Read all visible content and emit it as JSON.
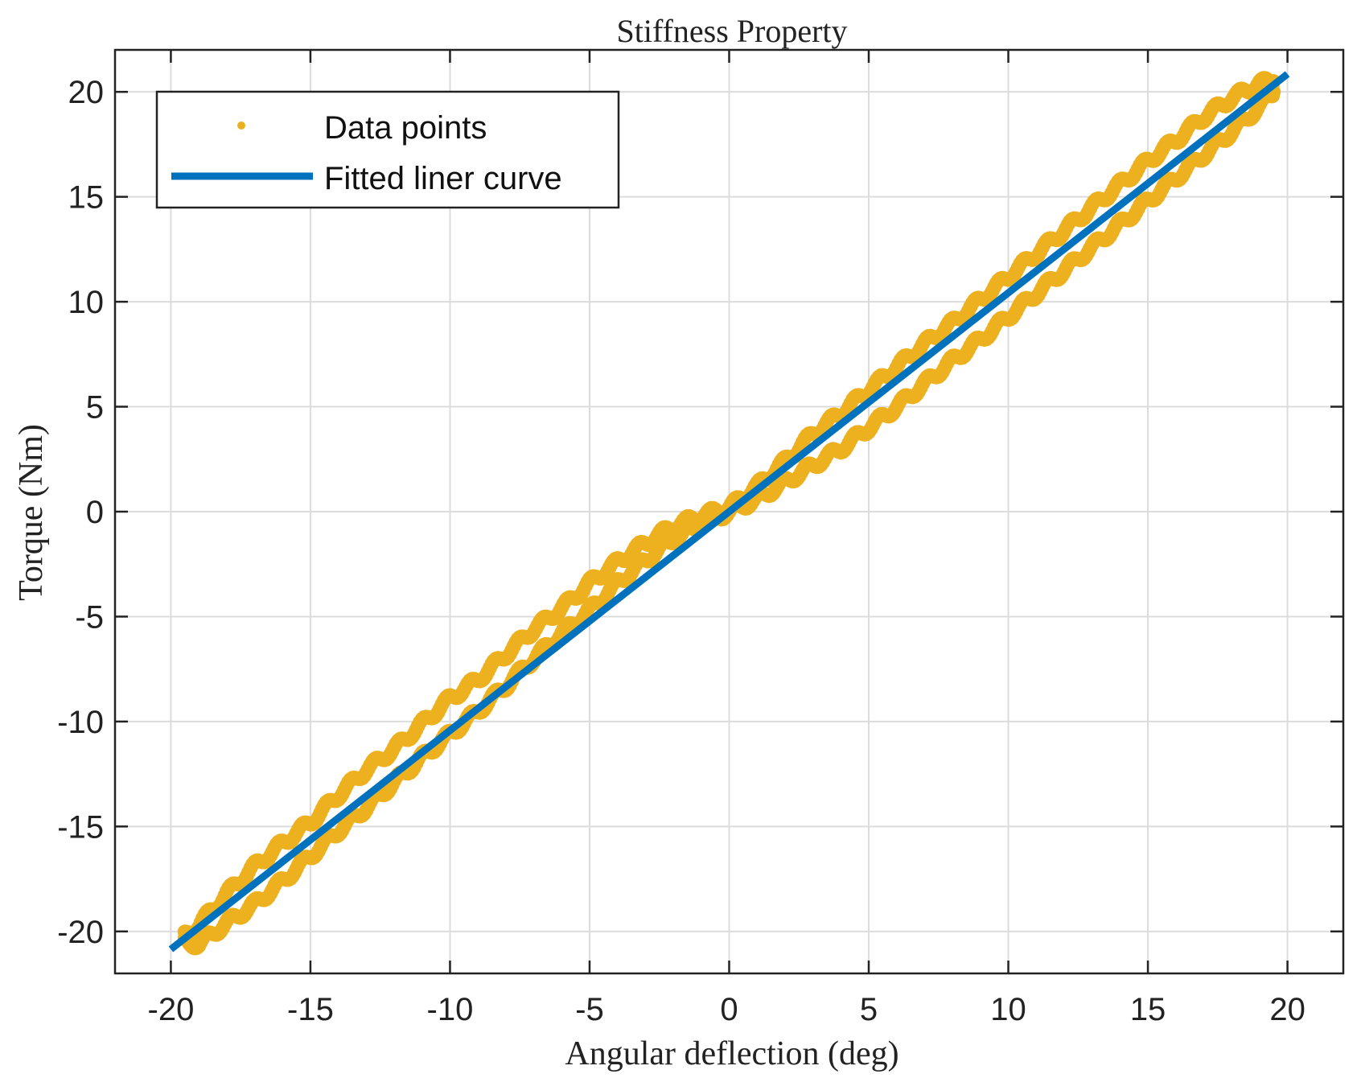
{
  "chart_data": {
    "type": "scatter",
    "title": "Stiffness Property",
    "xlabel": "Angular deflection (deg)",
    "ylabel": "Torque (Nm)",
    "xlim": [
      -22,
      22
    ],
    "ylim": [
      -22,
      22
    ],
    "xticks": [
      -20,
      -15,
      -10,
      -5,
      0,
      5,
      10,
      15,
      20
    ],
    "yticks": [
      -20,
      -15,
      -10,
      -5,
      0,
      5,
      10,
      15,
      20
    ],
    "xtick_labels": [
      "-20",
      "-15",
      "-10",
      "-5",
      "0",
      "5",
      "10",
      "15",
      "20"
    ],
    "ytick_labels": [
      "-20",
      "-15",
      "-10",
      "-5",
      "0",
      "5",
      "10",
      "15",
      "20"
    ],
    "grid": true,
    "legend_position": "top-left",
    "series": [
      {
        "name": "Data points",
        "kind": "scatter",
        "color": "#EDB120",
        "branches": [
          {
            "x": [
              -19.5,
              -19,
              -18,
              -17,
              -16,
              -15,
              -14,
              -13,
              -12,
              -11,
              -10,
              -9,
              -8,
              -7,
              -6,
              -5,
              -4,
              -3,
              -2,
              -1,
              0,
              1,
              2,
              3,
              4,
              5,
              6,
              7,
              8,
              9,
              10,
              11,
              12,
              13,
              14,
              15,
              16,
              17,
              18,
              19,
              19.5
            ],
            "y": [
              -20.2,
              -19.7,
              -18.2,
              -16.9,
              -15.8,
              -14.8,
              -13.5,
              -12.3,
              -11.3,
              -10.1,
              -8.9,
              -8.0,
              -6.8,
              -5.6,
              -4.6,
              -3.4,
              -2.4,
              -1.5,
              -0.7,
              -0.2,
              0.2,
              1.2,
              2.4,
              3.7,
              4.7,
              5.8,
              6.9,
              8.0,
              9.0,
              10.1,
              11.2,
              12.3,
              13.4,
              14.5,
              15.6,
              16.7,
              17.7,
              18.8,
              19.7,
              20.4,
              20.5
            ]
          },
          {
            "x": [
              -19.5,
              -19,
              -18,
              -17,
              -16,
              -15,
              -14,
              -13,
              -12,
              -11,
              -10,
              -9,
              -8,
              -7,
              -6,
              -5,
              -4,
              -3,
              -2,
              -1,
              0,
              1,
              2,
              3,
              4,
              5,
              6,
              7,
              8,
              9,
              10,
              11,
              12,
              13,
              14,
              15,
              16,
              17,
              18,
              19,
              19.5
            ],
            "y": [
              -20.5,
              -20.6,
              -19.6,
              -18.7,
              -17.6,
              -16.4,
              -15.2,
              -14.1,
              -12.9,
              -11.7,
              -10.6,
              -9.5,
              -8.3,
              -7.0,
              -5.8,
              -4.7,
              -3.4,
              -2.3,
              -1.3,
              -0.6,
              0.0,
              0.6,
              1.4,
              2.2,
              3.0,
              4.0,
              5.0,
              6.1,
              7.2,
              8.2,
              9.3,
              10.4,
              11.5,
              12.6,
              13.7,
              14.8,
              15.9,
              17.0,
              18.1,
              19.3,
              20.0
            ]
          }
        ]
      },
      {
        "name": "Fitted liner curve",
        "kind": "line",
        "color": "#0072BD",
        "x": [
          -20,
          20
        ],
        "y": [
          -20.85,
          20.85
        ]
      }
    ]
  }
}
